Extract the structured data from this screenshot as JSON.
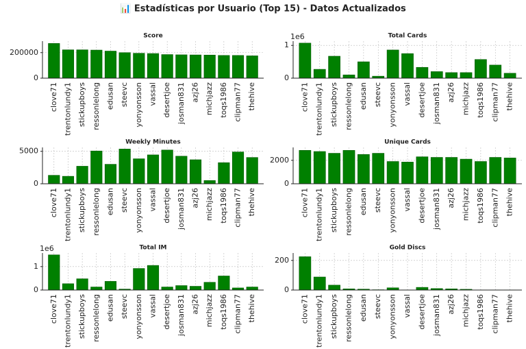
{
  "title": "📊 Estadísticas por Usuario (Top 15) - Datos Actualizados",
  "chart_data": [
    {
      "type": "bar",
      "title": "Score",
      "color": "#008000",
      "grid": true,
      "categories": [
        "clove71",
        "trentonlundy1",
        "stickupboys",
        "ressonlelong",
        "edusan",
        "steevc",
        "yonyonsson",
        "vassal",
        "desertjoe",
        "josman831",
        "azj26",
        "michjazz",
        "toqs1986",
        "clipman77",
        "thehive"
      ],
      "values": [
        272000,
        222000,
        222000,
        220000,
        212000,
        200000,
        195000,
        193000,
        185000,
        183000,
        182000,
        181000,
        178000,
        178000,
        175000
      ],
      "ylim": [
        0,
        290000
      ],
      "yticks": [
        0,
        200000
      ]
    },
    {
      "type": "bar",
      "title": "Total Cards",
      "color": "#008000",
      "grid": true,
      "y_offset_label": "1e6",
      "categories": [
        "clove71",
        "trentonlundy1",
        "stickupboys",
        "ressonlelong",
        "edusan",
        "steevc",
        "yonyonsson",
        "vassal",
        "desertjoe",
        "josman831",
        "azj26",
        "michjazz",
        "toqs1986",
        "clipman77",
        "thehive"
      ],
      "values": [
        1070000,
        270000,
        670000,
        100000,
        500000,
        60000,
        860000,
        750000,
        330000,
        200000,
        170000,
        170000,
        570000,
        400000,
        150000
      ],
      "ylim": [
        0,
        1130000
      ],
      "yticks": [
        0,
        {
          "value": 1000000,
          "label": "1"
        }
      ]
    },
    {
      "type": "bar",
      "title": "Weekly Minutes",
      "color": "#008000",
      "grid": true,
      "categories": [
        "clove71",
        "trentonlundy1",
        "stickupboys",
        "ressonlelong",
        "edusan",
        "steevc",
        "yonyonsson",
        "vassal",
        "desertjoe",
        "josman831",
        "azj26",
        "michjazz",
        "toqs1986",
        "clipman77",
        "thehive"
      ],
      "values": [
        1300,
        1150,
        2700,
        5050,
        3000,
        5350,
        3850,
        4450,
        5200,
        4250,
        3700,
        500,
        3250,
        4900,
        4050
      ],
      "ylim": [
        0,
        5600
      ],
      "yticks": [
        0,
        5000
      ]
    },
    {
      "type": "bar",
      "title": "Unique Cards",
      "color": "#008000",
      "grid": true,
      "categories": [
        "clove71",
        "trentonlundy1",
        "stickupboys",
        "ressonlelong",
        "edusan",
        "steevc",
        "yonyonsson",
        "vassal",
        "desertjoe",
        "josman831",
        "azj26",
        "michjazz",
        "toqs1986",
        "clipman77",
        "thehive"
      ],
      "values": [
        2850,
        2750,
        2600,
        2850,
        2500,
        2600,
        1900,
        1850,
        2300,
        2250,
        2250,
        2100,
        1900,
        2250,
        2200
      ],
      "ylim": [
        0,
        3100
      ],
      "yticks": [
        0,
        2000
      ]
    },
    {
      "type": "bar",
      "title": "Total IM",
      "color": "#008000",
      "grid": true,
      "y_offset_label": "1e6",
      "categories": [
        "clove71",
        "trentonlundy1",
        "stickupboys",
        "ressonlelong",
        "edusan",
        "steevc",
        "yonyonsson",
        "vassal",
        "desertjoe",
        "josman831",
        "azj26",
        "michjazz",
        "toqs1986",
        "clipman77",
        "thehive"
      ],
      "values": [
        1500000,
        270000,
        480000,
        130000,
        370000,
        40000,
        920000,
        1050000,
        130000,
        190000,
        160000,
        330000,
        600000,
        90000,
        130000
      ],
      "ylim": [
        0,
        1580000
      ],
      "yticks": [
        0,
        {
          "value": 1000000,
          "label": "1"
        }
      ]
    },
    {
      "type": "bar",
      "title": "Gold Discs",
      "color": "#008000",
      "grid": true,
      "categories": [
        "clove71",
        "trentonlundy1",
        "stickupboys",
        "ressonlelong",
        "edusan",
        "steevc",
        "yonyonsson",
        "vassal",
        "desertjoe",
        "josman831",
        "azj26",
        "michjazz",
        "toqs1986",
        "clipman77",
        "thehive"
      ],
      "values": [
        225,
        88,
        33,
        8,
        6,
        2,
        15,
        1,
        18,
        10,
        8,
        5,
        1,
        1,
        1
      ],
      "ylim": [
        0,
        250
      ],
      "yticks": [
        0,
        200
      ]
    }
  ]
}
